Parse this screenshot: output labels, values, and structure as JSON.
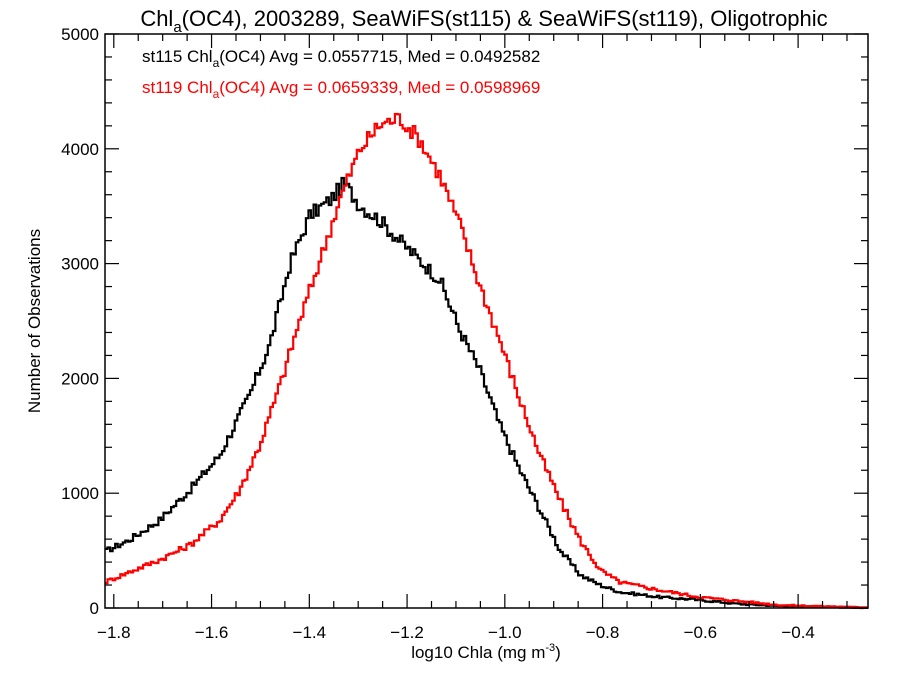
{
  "chart_data": {
    "type": "line",
    "style": "step-histogram",
    "title": "Chl_a(OC4), 2003289, SeaWiFS(st115) & SeaWiFS(st119), Oligotrophic",
    "title_parts": {
      "pre": "Chl",
      "sub": "a",
      "post": "(OC4), 2003289, SeaWiFS(st115) & SeaWiFS(st119), Oligotrophic"
    },
    "xlabel": "log10 Chla (mg m^-3)",
    "xlabel_parts": {
      "pre": "log10 Chla (mg m",
      "sup": "-3",
      "post": ")"
    },
    "ylabel": "Number of Observations",
    "xlim": [
      -1.818,
      -0.257
    ],
    "ylim": [
      0,
      5000
    ],
    "x_ticks": [
      -1.8,
      -1.6,
      -1.4,
      -1.2,
      -1.0,
      -0.8,
      -0.6,
      -0.4
    ],
    "x_tick_labels": [
      "−1.8",
      "−1.6",
      "−1.4",
      "−1.2",
      "−1.0",
      "−0.8",
      "−0.6",
      "−0.4"
    ],
    "x_minor_step": 0.05,
    "y_ticks": [
      0,
      1000,
      2000,
      3000,
      4000,
      5000
    ],
    "y_tick_labels": [
      "0",
      "1000",
      "2000",
      "3000",
      "4000",
      "5000"
    ],
    "y_minor_step": 200,
    "grid": false,
    "legend_position": "top-left",
    "series": [
      {
        "name": "st115",
        "color": "#000000",
        "legend_parts": {
          "pre": "st115 Chl",
          "sub": "a",
          "post": "(OC4) Avg = 0.0557715, Med = 0.0492582"
        },
        "x": [
          -1.818,
          -1.767,
          -1.706,
          -1.644,
          -1.583,
          -1.522,
          -1.481,
          -1.44,
          -1.399,
          -1.358,
          -1.328,
          -1.297,
          -1.256,
          -1.215,
          -1.174,
          -1.133,
          -1.092,
          -1.051,
          -1.01,
          -0.969,
          -0.928,
          -0.887,
          -0.846,
          -0.805,
          -0.765,
          -0.683,
          -0.601,
          -0.519,
          -0.437,
          -0.257
        ],
        "values": [
          490,
          595,
          765,
          1030,
          1330,
          1855,
          2290,
          2990,
          3420,
          3550,
          3700,
          3510,
          3380,
          3200,
          3030,
          2860,
          2420,
          2070,
          1590,
          1200,
          855,
          505,
          290,
          200,
          140,
          95,
          70,
          35,
          17,
          0
        ]
      },
      {
        "name": "st119",
        "color": "#ff0000",
        "legend_parts": {
          "pre": "st119 Chl",
          "sub": "a",
          "post": "(OC4) Avg = 0.0659339, Med = 0.0598969"
        },
        "x": [
          -1.818,
          -1.767,
          -1.706,
          -1.644,
          -1.583,
          -1.542,
          -1.501,
          -1.46,
          -1.419,
          -1.378,
          -1.338,
          -1.297,
          -1.256,
          -1.215,
          -1.174,
          -1.133,
          -1.092,
          -1.051,
          -1.01,
          -0.969,
          -0.928,
          -0.887,
          -0.846,
          -0.805,
          -0.765,
          -0.683,
          -0.601,
          -0.519,
          -0.437,
          -0.257
        ],
        "values": [
          225,
          315,
          420,
          550,
          765,
          1030,
          1420,
          1940,
          2510,
          3030,
          3550,
          3990,
          4210,
          4270,
          4080,
          3770,
          3340,
          2810,
          2330,
          1810,
          1330,
          940,
          590,
          330,
          225,
          155,
          95,
          60,
          25,
          5
        ]
      }
    ]
  }
}
